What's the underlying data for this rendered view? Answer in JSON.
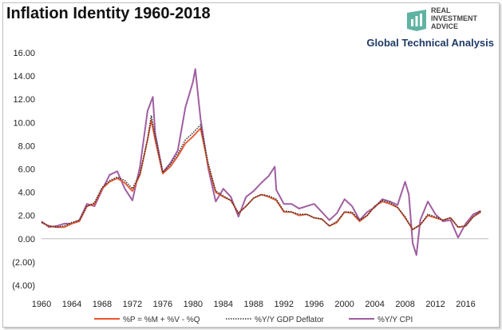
{
  "header": {
    "title": "Inflation Identity 1960-2018",
    "subtitle": "Global Technical Analysis"
  },
  "logo": {
    "line1": "REAL",
    "line2": "INVESTMENT",
    "line3": "ADVICE",
    "icon": "bar-chart-logo-icon",
    "color": "#5fb3a3"
  },
  "chart_data": {
    "type": "line",
    "ylim": [
      -4,
      16
    ],
    "yticks": [
      -4,
      -2,
      0,
      2,
      4,
      6,
      8,
      10,
      12,
      14,
      16
    ],
    "ytick_labels": [
      "(4.00)",
      "(2.00)",
      "0.00",
      "2.00",
      "4.00",
      "6.00",
      "8.00",
      "10.00",
      "12.00",
      "14.00",
      "16.00"
    ],
    "xlim": [
      1960,
      2019
    ],
    "xticks": [
      1960,
      1964,
      1968,
      1972,
      1976,
      1980,
      1984,
      1988,
      1992,
      1996,
      2000,
      2004,
      2008,
      2012,
      2016
    ],
    "xtick_labels": [
      "1960",
      "1964",
      "1968",
      "1972",
      "1976",
      "1980",
      "1984",
      "1988",
      "1992",
      "1996",
      "2000",
      "2004",
      "2008",
      "2012",
      "2016"
    ],
    "grid": false,
    "legend_position": "bottom",
    "series": [
      {
        "name": "%P = %M + %V - %Q",
        "color": "#e8552e",
        "style": "solid",
        "x": [
          1960,
          1961,
          1962,
          1963,
          1964,
          1965,
          1966,
          1967,
          1968,
          1969,
          1970,
          1971,
          1972,
          1973,
          1974,
          1974.5,
          1975,
          1976,
          1977,
          1978,
          1979,
          1980,
          1981,
          1982,
          1983,
          1984,
          1985,
          1986,
          1987,
          1988,
          1989,
          1990,
          1991,
          1992,
          1993,
          1994,
          1995,
          1996,
          1997,
          1998,
          1999,
          2000,
          2001,
          2002,
          2003,
          2004,
          2005,
          2006,
          2007,
          2008,
          2009,
          2010,
          2011,
          2012,
          2013,
          2014,
          2015,
          2016,
          2017,
          2018
        ],
        "values": [
          1.4,
          1.1,
          1.0,
          1.0,
          1.3,
          1.5,
          2.8,
          3.0,
          4.3,
          4.9,
          5.2,
          4.8,
          4.1,
          5.5,
          8.5,
          10.2,
          8.5,
          5.6,
          6.2,
          7.1,
          8.2,
          8.8,
          9.5,
          6.3,
          4.0,
          3.6,
          3.3,
          2.2,
          2.8,
          3.5,
          3.8,
          3.6,
          3.3,
          2.3,
          2.3,
          2.0,
          2.1,
          1.8,
          1.7,
          1.1,
          1.4,
          2.3,
          2.2,
          1.5,
          2.0,
          2.8,
          3.2,
          3.0,
          2.7,
          1.8,
          0.8,
          1.2,
          2.0,
          1.8,
          1.6,
          1.8,
          1.0,
          1.1,
          1.9,
          2.3
        ]
      },
      {
        "name": "%Y/Y GDP Deflator",
        "color": "#333333",
        "style": "dotted",
        "x": [
          1960,
          1961,
          1962,
          1963,
          1964,
          1965,
          1966,
          1967,
          1968,
          1969,
          1970,
          1971,
          1972,
          1973,
          1974,
          1974.5,
          1975,
          1976,
          1977,
          1978,
          1979,
          1980,
          1981,
          1982,
          1983,
          1984,
          1985,
          1986,
          1987,
          1988,
          1989,
          1990,
          1991,
          1992,
          1993,
          1994,
          1995,
          1996,
          1997,
          1998,
          1999,
          2000,
          2001,
          2002,
          2003,
          2004,
          2005,
          2006,
          2007,
          2008,
          2009,
          2010,
          2011,
          2012,
          2013,
          2014,
          2015,
          2016,
          2017,
          2018
        ],
        "values": [
          1.4,
          1.1,
          1.0,
          1.1,
          1.4,
          1.6,
          2.8,
          3.1,
          4.4,
          5.0,
          5.3,
          5.0,
          4.3,
          5.6,
          8.6,
          10.6,
          8.8,
          5.7,
          6.4,
          7.3,
          8.5,
          9.1,
          9.8,
          6.5,
          4.1,
          3.7,
          3.3,
          2.2,
          2.8,
          3.5,
          3.8,
          3.7,
          3.4,
          2.4,
          2.3,
          2.1,
          2.1,
          1.8,
          1.7,
          1.1,
          1.5,
          2.3,
          2.3,
          1.6,
          2.0,
          2.8,
          3.3,
          3.1,
          2.7,
          1.9,
          0.8,
          1.2,
          2.1,
          1.9,
          1.6,
          1.8,
          1.0,
          1.1,
          1.9,
          2.4
        ]
      },
      {
        "name": "%Y/Y CPI",
        "color": "#a05ea0",
        "style": "solid",
        "x": [
          1960,
          1961,
          1962,
          1963,
          1964,
          1965,
          1966,
          1967,
          1968,
          1969,
          1970,
          1971,
          1972,
          1973,
          1974,
          1974.7,
          1975,
          1976,
          1977,
          1978,
          1979,
          1980,
          1980.3,
          1981,
          1982,
          1983,
          1984,
          1985,
          1986,
          1987,
          1988,
          1989,
          1990,
          1990.8,
          1991,
          1992,
          1993,
          1994,
          1995,
          1996,
          1997,
          1998,
          1999,
          2000,
          2001,
          2002,
          2003,
          2004,
          2005,
          2006,
          2007,
          2008,
          2008.5,
          2009,
          2009.5,
          2010,
          2011,
          2012,
          2013,
          2014,
          2015,
          2016,
          2017,
          2018
        ],
        "values": [
          1.5,
          1.0,
          1.1,
          1.3,
          1.3,
          1.6,
          3.0,
          2.8,
          4.2,
          5.5,
          5.8,
          4.3,
          3.3,
          6.2,
          11.0,
          12.2,
          9.1,
          5.7,
          6.5,
          7.6,
          11.3,
          13.5,
          14.6,
          10.3,
          6.1,
          3.2,
          4.3,
          3.6,
          1.9,
          3.6,
          4.1,
          4.8,
          5.4,
          6.2,
          4.2,
          3.0,
          3.0,
          2.6,
          2.8,
          3.0,
          2.3,
          1.6,
          2.2,
          3.4,
          2.8,
          1.6,
          2.3,
          2.7,
          3.4,
          3.2,
          2.9,
          4.9,
          3.8,
          -0.4,
          -1.4,
          1.6,
          3.2,
          2.1,
          1.5,
          1.6,
          0.1,
          1.3,
          2.1,
          2.4
        ]
      }
    ]
  }
}
